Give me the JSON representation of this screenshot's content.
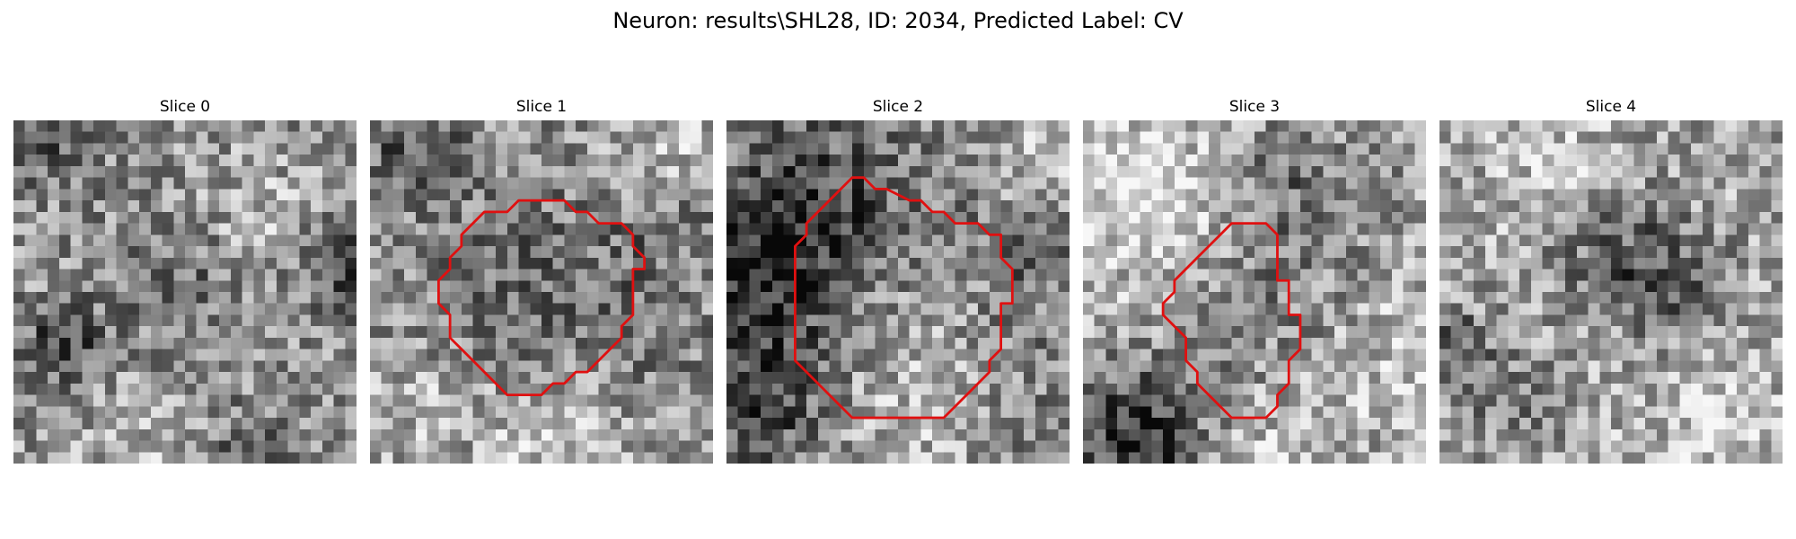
{
  "figure": {
    "title": "Neuron: results\\SHL28, ID: 2034, Predicted Label: CV"
  },
  "grid_size": 30,
  "contour_color": "#e01010",
  "panels": [
    {
      "title": "Slice 0",
      "seed": 17,
      "has_contour": false,
      "dark_blobs": [
        {
          "cx": 4,
          "cy": 19,
          "r": 2.5,
          "strength": 0.35
        },
        {
          "cx": 28,
          "cy": 12,
          "r": 3.0,
          "strength": 0.3
        },
        {
          "cx": 14,
          "cy": 13,
          "r": 4.0,
          "strength": 0.18
        },
        {
          "cx": 20,
          "cy": 29,
          "r": 3.0,
          "strength": 0.2
        },
        {
          "cx": 3,
          "cy": 1,
          "r": 3.0,
          "strength": 0.25
        }
      ],
      "light_blobs": [
        {
          "cx": 21,
          "cy": 9,
          "r": 4.0,
          "strength": 0.15
        },
        {
          "cx": 10,
          "cy": 28,
          "r": 4.0,
          "strength": 0.12
        }
      ],
      "base_level": 0.58,
      "contour": []
    },
    {
      "title": "Slice 1",
      "seed": 29,
      "has_contour": true,
      "dark_blobs": [
        {
          "cx": 16,
          "cy": 16,
          "r": 8.0,
          "strength": 0.18
        },
        {
          "cx": 3,
          "cy": 2,
          "r": 3.0,
          "strength": 0.25
        },
        {
          "cx": 26,
          "cy": 8,
          "r": 3.0,
          "strength": 0.15
        }
      ],
      "light_blobs": [
        {
          "cx": 16,
          "cy": 27,
          "r": 5.0,
          "strength": 0.25
        },
        {
          "cx": 26,
          "cy": 3,
          "r": 4.0,
          "strength": 0.2
        },
        {
          "cx": 3,
          "cy": 24,
          "r": 4.0,
          "strength": 0.15
        }
      ],
      "base_level": 0.58,
      "contour": [
        [
          15,
          7
        ],
        [
          17,
          7
        ],
        [
          18,
          8
        ],
        [
          19,
          8
        ],
        [
          20,
          9
        ],
        [
          22,
          9
        ],
        [
          23,
          10
        ],
        [
          23,
          11
        ],
        [
          24,
          12
        ],
        [
          24,
          13
        ],
        [
          23,
          13
        ],
        [
          23,
          15
        ],
        [
          23,
          17
        ],
        [
          22,
          18
        ],
        [
          22,
          19
        ],
        [
          21,
          20
        ],
        [
          20,
          21
        ],
        [
          19,
          22
        ],
        [
          18,
          22
        ],
        [
          17,
          23
        ],
        [
          16,
          23
        ],
        [
          15,
          24
        ],
        [
          14,
          24
        ],
        [
          12,
          24
        ],
        [
          11,
          23
        ],
        [
          10,
          22
        ],
        [
          9,
          21
        ],
        [
          8,
          20
        ],
        [
          7,
          19
        ],
        [
          7,
          17
        ],
        [
          6,
          16
        ],
        [
          6,
          14
        ],
        [
          7,
          13
        ],
        [
          7,
          12
        ],
        [
          8,
          11
        ],
        [
          8,
          10
        ],
        [
          9,
          9
        ],
        [
          10,
          8
        ],
        [
          12,
          8
        ],
        [
          13,
          7
        ]
      ]
    },
    {
      "title": "Slice 2",
      "seed": 43,
      "has_contour": true,
      "dark_blobs": [
        {
          "cx": 1,
          "cy": 14,
          "r": 5.0,
          "strength": 0.3
        },
        {
          "cx": 3,
          "cy": 24,
          "r": 4.0,
          "strength": 0.25
        },
        {
          "cx": 7,
          "cy": 8,
          "r": 5.0,
          "strength": 0.25
        },
        {
          "cx": 26,
          "cy": 10,
          "r": 3.0,
          "strength": 0.18
        }
      ],
      "light_blobs": [
        {
          "cx": 27,
          "cy": 3,
          "r": 4.0,
          "strength": 0.25
        },
        {
          "cx": 15,
          "cy": 28,
          "r": 6.0,
          "strength": 0.2
        },
        {
          "cx": 17,
          "cy": 18,
          "r": 5.0,
          "strength": 0.1
        }
      ],
      "base_level": 0.5,
      "contour": [
        [
          11,
          5
        ],
        [
          12,
          5
        ],
        [
          13,
          6
        ],
        [
          14,
          6
        ],
        [
          16,
          7
        ],
        [
          17,
          7
        ],
        [
          18,
          8
        ],
        [
          19,
          8
        ],
        [
          20,
          9
        ],
        [
          22,
          9
        ],
        [
          23,
          10
        ],
        [
          24,
          10
        ],
        [
          24,
          12
        ],
        [
          25,
          13
        ],
        [
          25,
          16
        ],
        [
          24,
          16
        ],
        [
          24,
          17
        ],
        [
          24,
          20
        ],
        [
          23,
          21
        ],
        [
          23,
          22
        ],
        [
          22,
          23
        ],
        [
          21,
          24
        ],
        [
          20,
          25
        ],
        [
          19,
          26
        ],
        [
          18,
          26
        ],
        [
          17,
          26
        ],
        [
          12,
          26
        ],
        [
          11,
          26
        ],
        [
          10,
          25
        ],
        [
          9,
          24
        ],
        [
          8,
          23
        ],
        [
          7,
          22
        ],
        [
          6,
          21
        ],
        [
          6,
          20
        ],
        [
          6,
          11
        ],
        [
          7,
          10
        ],
        [
          7,
          9
        ],
        [
          8,
          8
        ],
        [
          9,
          7
        ],
        [
          10,
          6
        ]
      ]
    },
    {
      "title": "Slice 3",
      "seed": 61,
      "has_contour": true,
      "dark_blobs": [
        {
          "cx": 4,
          "cy": 27,
          "r": 4.0,
          "strength": 0.45
        },
        {
          "cx": 18,
          "cy": 5,
          "r": 4.0,
          "strength": 0.18
        },
        {
          "cx": 17,
          "cy": 16,
          "r": 6.0,
          "strength": 0.12
        }
      ],
      "light_blobs": [
        {
          "cx": 4,
          "cy": 6,
          "r": 6.0,
          "strength": 0.25
        },
        {
          "cx": 26,
          "cy": 20,
          "r": 5.0,
          "strength": 0.15
        },
        {
          "cx": 17,
          "cy": 28,
          "r": 4.0,
          "strength": 0.15
        }
      ],
      "base_level": 0.62,
      "contour": [
        [
          12,
          10
        ],
        [
          13,
          9
        ],
        [
          14,
          9
        ],
        [
          16,
          9
        ],
        [
          17,
          10
        ],
        [
          17,
          14
        ],
        [
          18,
          14
        ],
        [
          18,
          15
        ],
        [
          18,
          17
        ],
        [
          19,
          17
        ],
        [
          19,
          20
        ],
        [
          18,
          21
        ],
        [
          18,
          23
        ],
        [
          17,
          24
        ],
        [
          17,
          25
        ],
        [
          16,
          26
        ],
        [
          13,
          26
        ],
        [
          12,
          25
        ],
        [
          11,
          24
        ],
        [
          10,
          23
        ],
        [
          10,
          22
        ],
        [
          9,
          21
        ],
        [
          9,
          19
        ],
        [
          8,
          18
        ],
        [
          7,
          17
        ],
        [
          7,
          16
        ],
        [
          8,
          15
        ],
        [
          8,
          14
        ],
        [
          9,
          13
        ],
        [
          10,
          12
        ],
        [
          11,
          11
        ]
      ]
    },
    {
      "title": "Slice 4",
      "seed": 83,
      "has_contour": false,
      "dark_blobs": [
        {
          "cx": 15,
          "cy": 11,
          "r": 4.0,
          "strength": 0.25
        },
        {
          "cx": 20,
          "cy": 14,
          "r": 3.0,
          "strength": 0.25
        },
        {
          "cx": 1,
          "cy": 19,
          "r": 2.0,
          "strength": 0.3
        },
        {
          "cx": 6,
          "cy": 24,
          "r": 3.0,
          "strength": 0.2
        }
      ],
      "light_blobs": [
        {
          "cx": 24,
          "cy": 26,
          "r": 5.0,
          "strength": 0.15
        },
        {
          "cx": 10,
          "cy": 4,
          "r": 4.0,
          "strength": 0.15
        }
      ],
      "base_level": 0.64,
      "contour": []
    }
  ]
}
